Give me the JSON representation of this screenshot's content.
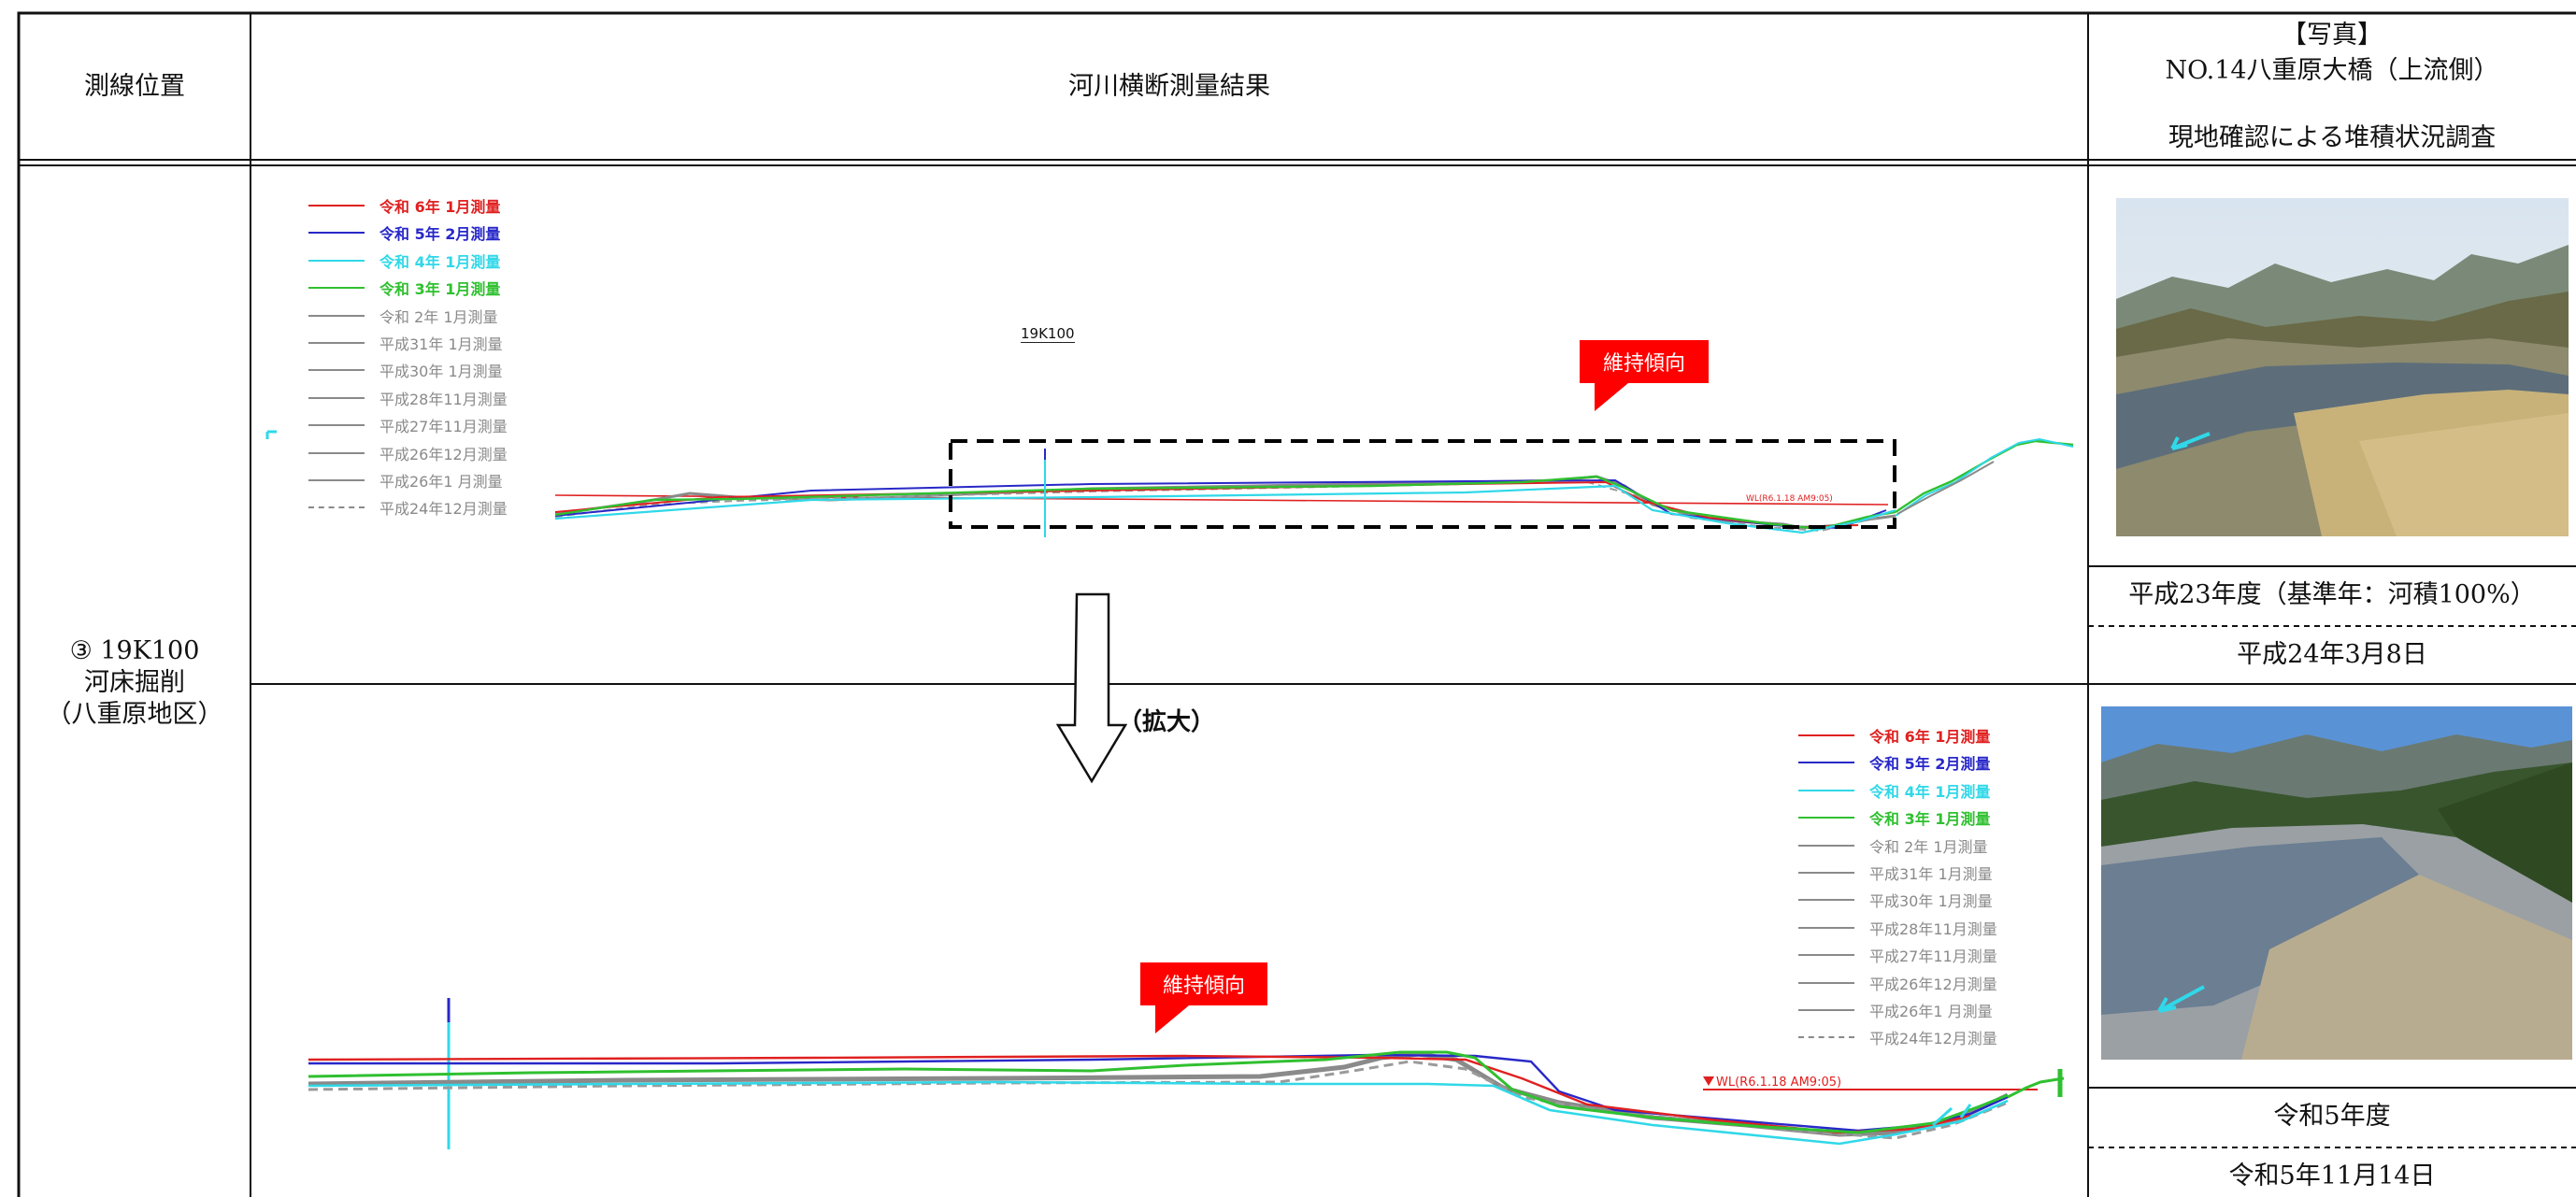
{
  "header": {
    "col1": "測線位置",
    "col2": "河川横断測量結果",
    "col3_line1": "【写真】",
    "col3_line2": "NO.14八重原大橋（上流側）",
    "col3_line3": "現地確認による堆積状況調査"
  },
  "location": {
    "line1": "③ 19K100",
    "line2": "河床掘削",
    "line3": "（八重原地区）"
  },
  "section_label": "19K100",
  "tag_upper": "維持傾向",
  "tag_lower": "維持傾向",
  "zoom_label": "（拡大）",
  "wl_label": "WL(R6.1.18 AM9:05)",
  "legend": [
    {
      "label": "令和 6年 1月測量",
      "color": "#e02020",
      "bold": true,
      "dashed": false
    },
    {
      "label": "令和 5年 2月測量",
      "color": "#2828c8",
      "bold": true,
      "dashed": false
    },
    {
      "label": "令和 4年 1月測量",
      "color": "#30d8e8",
      "bold": true,
      "dashed": false
    },
    {
      "label": "令和 3年 1月測量",
      "color": "#30c030",
      "bold": true,
      "dashed": false
    },
    {
      "label": "令和 2年 1月測量",
      "color": "#8a8a8a",
      "bold": false,
      "dashed": false
    },
    {
      "label": "平成31年 1月測量",
      "color": "#8a8a8a",
      "bold": false,
      "dashed": false
    },
    {
      "label": "平成30年 1月測量",
      "color": "#8a8a8a",
      "bold": false,
      "dashed": false
    },
    {
      "label": "平成28年11月測量",
      "color": "#8a8a8a",
      "bold": false,
      "dashed": false
    },
    {
      "label": "平成27年11月測量",
      "color": "#8a8a8a",
      "bold": false,
      "dashed": false
    },
    {
      "label": "平成26年12月測量",
      "color": "#8a8a8a",
      "bold": false,
      "dashed": false
    },
    {
      "label": "平成26年1 月測量",
      "color": "#8a8a8a",
      "bold": false,
      "dashed": false
    },
    {
      "label": "平成24年12月測量",
      "color": "#8a8a8a",
      "bold": false,
      "dashed": true
    }
  ],
  "photos": {
    "top_caption": "平成23年度（基準年：河積100%）",
    "top_date": "平成24年3月8日",
    "bottom_caption": "令和5年度",
    "bottom_date": "令和5年11月14日"
  },
  "colors": {
    "r6": "#e02020",
    "r5": "#2828c8",
    "r4": "#30d8e8",
    "r3": "#30c030",
    "older": "#8a8a8a",
    "tag": "#ff0000",
    "box": "#000000"
  }
}
